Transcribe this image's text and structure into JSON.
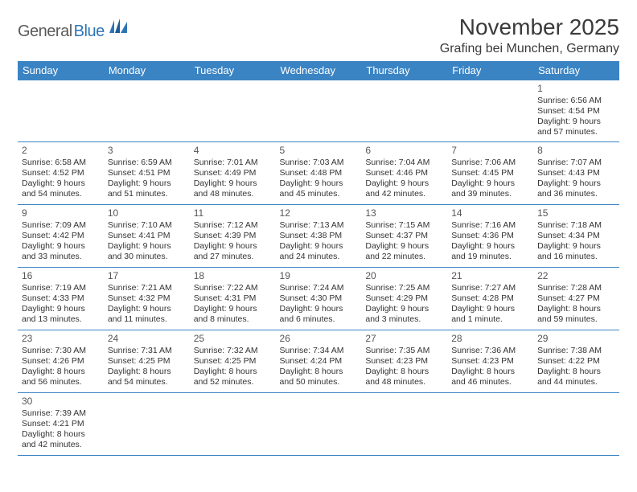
{
  "logo": {
    "text1": "General",
    "text2": "Blue",
    "text_color1": "#5a5a5a",
    "text_color2": "#2e74b5",
    "icon_name": "sail-icon",
    "icon_colors": [
      "#2e74b5",
      "#1f5c94",
      "#2e74b5"
    ]
  },
  "header": {
    "title": "November 2025",
    "location": "Grafing bei Munchen, Germany"
  },
  "calendar": {
    "type": "table",
    "header_bg": "#3b84c4",
    "header_fg": "#ffffff",
    "border_color": "#3b84c4",
    "cell_font_size": 10.5,
    "columns": [
      "Sunday",
      "Monday",
      "Tuesday",
      "Wednesday",
      "Thursday",
      "Friday",
      "Saturday"
    ],
    "weeks": [
      [
        null,
        null,
        null,
        null,
        null,
        null,
        {
          "d": "1",
          "sr": "Sunrise: 6:56 AM",
          "ss": "Sunset: 4:54 PM",
          "dl1": "Daylight: 9 hours",
          "dl2": "and 57 minutes."
        }
      ],
      [
        {
          "d": "2",
          "sr": "Sunrise: 6:58 AM",
          "ss": "Sunset: 4:52 PM",
          "dl1": "Daylight: 9 hours",
          "dl2": "and 54 minutes."
        },
        {
          "d": "3",
          "sr": "Sunrise: 6:59 AM",
          "ss": "Sunset: 4:51 PM",
          "dl1": "Daylight: 9 hours",
          "dl2": "and 51 minutes."
        },
        {
          "d": "4",
          "sr": "Sunrise: 7:01 AM",
          "ss": "Sunset: 4:49 PM",
          "dl1": "Daylight: 9 hours",
          "dl2": "and 48 minutes."
        },
        {
          "d": "5",
          "sr": "Sunrise: 7:03 AM",
          "ss": "Sunset: 4:48 PM",
          "dl1": "Daylight: 9 hours",
          "dl2": "and 45 minutes."
        },
        {
          "d": "6",
          "sr": "Sunrise: 7:04 AM",
          "ss": "Sunset: 4:46 PM",
          "dl1": "Daylight: 9 hours",
          "dl2": "and 42 minutes."
        },
        {
          "d": "7",
          "sr": "Sunrise: 7:06 AM",
          "ss": "Sunset: 4:45 PM",
          "dl1": "Daylight: 9 hours",
          "dl2": "and 39 minutes."
        },
        {
          "d": "8",
          "sr": "Sunrise: 7:07 AM",
          "ss": "Sunset: 4:43 PM",
          "dl1": "Daylight: 9 hours",
          "dl2": "and 36 minutes."
        }
      ],
      [
        {
          "d": "9",
          "sr": "Sunrise: 7:09 AM",
          "ss": "Sunset: 4:42 PM",
          "dl1": "Daylight: 9 hours",
          "dl2": "and 33 minutes."
        },
        {
          "d": "10",
          "sr": "Sunrise: 7:10 AM",
          "ss": "Sunset: 4:41 PM",
          "dl1": "Daylight: 9 hours",
          "dl2": "and 30 minutes."
        },
        {
          "d": "11",
          "sr": "Sunrise: 7:12 AM",
          "ss": "Sunset: 4:39 PM",
          "dl1": "Daylight: 9 hours",
          "dl2": "and 27 minutes."
        },
        {
          "d": "12",
          "sr": "Sunrise: 7:13 AM",
          "ss": "Sunset: 4:38 PM",
          "dl1": "Daylight: 9 hours",
          "dl2": "and 24 minutes."
        },
        {
          "d": "13",
          "sr": "Sunrise: 7:15 AM",
          "ss": "Sunset: 4:37 PM",
          "dl1": "Daylight: 9 hours",
          "dl2": "and 22 minutes."
        },
        {
          "d": "14",
          "sr": "Sunrise: 7:16 AM",
          "ss": "Sunset: 4:36 PM",
          "dl1": "Daylight: 9 hours",
          "dl2": "and 19 minutes."
        },
        {
          "d": "15",
          "sr": "Sunrise: 7:18 AM",
          "ss": "Sunset: 4:34 PM",
          "dl1": "Daylight: 9 hours",
          "dl2": "and 16 minutes."
        }
      ],
      [
        {
          "d": "16",
          "sr": "Sunrise: 7:19 AM",
          "ss": "Sunset: 4:33 PM",
          "dl1": "Daylight: 9 hours",
          "dl2": "and 13 minutes."
        },
        {
          "d": "17",
          "sr": "Sunrise: 7:21 AM",
          "ss": "Sunset: 4:32 PM",
          "dl1": "Daylight: 9 hours",
          "dl2": "and 11 minutes."
        },
        {
          "d": "18",
          "sr": "Sunrise: 7:22 AM",
          "ss": "Sunset: 4:31 PM",
          "dl1": "Daylight: 9 hours",
          "dl2": "and 8 minutes."
        },
        {
          "d": "19",
          "sr": "Sunrise: 7:24 AM",
          "ss": "Sunset: 4:30 PM",
          "dl1": "Daylight: 9 hours",
          "dl2": "and 6 minutes."
        },
        {
          "d": "20",
          "sr": "Sunrise: 7:25 AM",
          "ss": "Sunset: 4:29 PM",
          "dl1": "Daylight: 9 hours",
          "dl2": "and 3 minutes."
        },
        {
          "d": "21",
          "sr": "Sunrise: 7:27 AM",
          "ss": "Sunset: 4:28 PM",
          "dl1": "Daylight: 9 hours",
          "dl2": "and 1 minute."
        },
        {
          "d": "22",
          "sr": "Sunrise: 7:28 AM",
          "ss": "Sunset: 4:27 PM",
          "dl1": "Daylight: 8 hours",
          "dl2": "and 59 minutes."
        }
      ],
      [
        {
          "d": "23",
          "sr": "Sunrise: 7:30 AM",
          "ss": "Sunset: 4:26 PM",
          "dl1": "Daylight: 8 hours",
          "dl2": "and 56 minutes."
        },
        {
          "d": "24",
          "sr": "Sunrise: 7:31 AM",
          "ss": "Sunset: 4:25 PM",
          "dl1": "Daylight: 8 hours",
          "dl2": "and 54 minutes."
        },
        {
          "d": "25",
          "sr": "Sunrise: 7:32 AM",
          "ss": "Sunset: 4:25 PM",
          "dl1": "Daylight: 8 hours",
          "dl2": "and 52 minutes."
        },
        {
          "d": "26",
          "sr": "Sunrise: 7:34 AM",
          "ss": "Sunset: 4:24 PM",
          "dl1": "Daylight: 8 hours",
          "dl2": "and 50 minutes."
        },
        {
          "d": "27",
          "sr": "Sunrise: 7:35 AM",
          "ss": "Sunset: 4:23 PM",
          "dl1": "Daylight: 8 hours",
          "dl2": "and 48 minutes."
        },
        {
          "d": "28",
          "sr": "Sunrise: 7:36 AM",
          "ss": "Sunset: 4:23 PM",
          "dl1": "Daylight: 8 hours",
          "dl2": "and 46 minutes."
        },
        {
          "d": "29",
          "sr": "Sunrise: 7:38 AM",
          "ss": "Sunset: 4:22 PM",
          "dl1": "Daylight: 8 hours",
          "dl2": "and 44 minutes."
        }
      ],
      [
        {
          "d": "30",
          "sr": "Sunrise: 7:39 AM",
          "ss": "Sunset: 4:21 PM",
          "dl1": "Daylight: 8 hours",
          "dl2": "and 42 minutes."
        },
        null,
        null,
        null,
        null,
        null,
        null
      ]
    ]
  }
}
